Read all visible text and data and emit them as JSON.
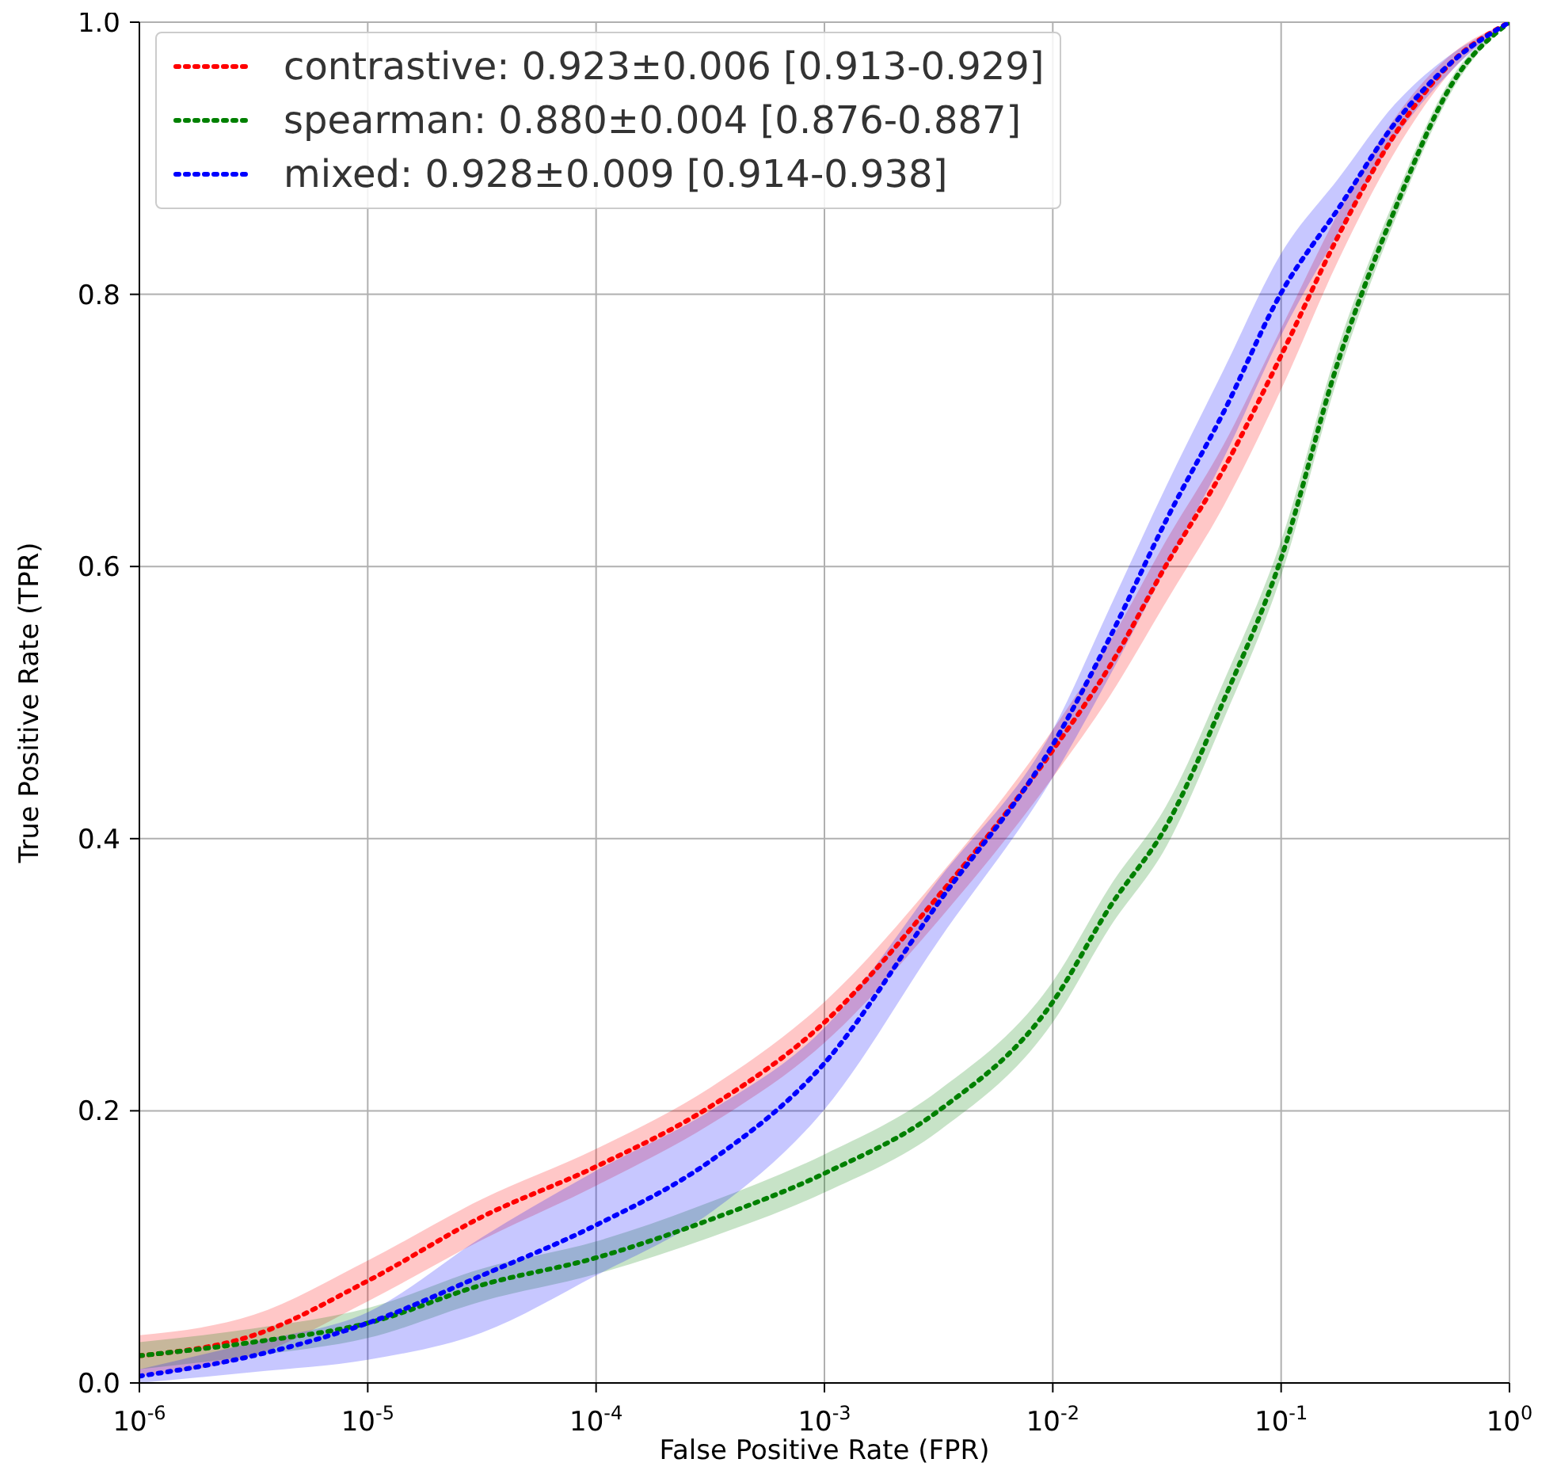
{
  "chart_data": {
    "type": "line",
    "xlabel": "False Positive Rate (FPR)",
    "ylabel": "True Positive Rate (TPR)",
    "log": "x",
    "grid": true,
    "legend": "top left",
    "marker": "none",
    "line_style": "dotted",
    "xlim": [
      1e-06,
      1
    ],
    "ylim": [
      0,
      1
    ],
    "xticks": [
      {
        "value": 1e-06,
        "label": "10$^{-6}$"
      },
      {
        "value": 1e-05,
        "label": "10$^{-5}$"
      },
      {
        "value": 0.0001,
        "label": "10$^{-4}$"
      },
      {
        "value": 0.001,
        "label": "10$^{-3}$"
      },
      {
        "value": 0.01,
        "label": "10$^{-2}$"
      },
      {
        "value": 0.1,
        "label": "10$^{-1}$"
      },
      {
        "value": 1,
        "label": "10$^{0}$"
      }
    ],
    "yticks": [
      {
        "value": 0,
        "label": "0.0"
      },
      0.2,
      0.4,
      0.6,
      0.8,
      {
        "value": 1,
        "label": "1.0"
      }
    ],
    "x": [
      1e-06,
      3.16e-06,
      1e-05,
      3.16e-05,
      0.0001,
      0.000316,
      0.001,
      0.00316,
      0.01,
      0.0178,
      0.0316,
      0.0562,
      0.1,
      0.178,
      0.316,
      0.562,
      1
    ],
    "series": [
      {
        "name": "contrastive: 0.923±0.006 [0.913-0.929]",
        "color": "#ff0000",
        "values": [
          0.02,
          0.035,
          0.075,
          0.122,
          0.159,
          0.203,
          0.265,
          0.358,
          0.465,
          0.527,
          0.602,
          0.672,
          0.755,
          0.843,
          0.918,
          0.971,
          1
        ],
        "lower": [
          0.005,
          0.02,
          0.06,
          0.105,
          0.145,
          0.19,
          0.25,
          0.34,
          0.445,
          0.505,
          0.575,
          0.645,
          0.73,
          0.825,
          0.905,
          0.965,
          1
        ],
        "upper": [
          0.035,
          0.05,
          0.09,
          0.135,
          0.172,
          0.217,
          0.28,
          0.372,
          0.48,
          0.545,
          0.62,
          0.69,
          0.775,
          0.86,
          0.93,
          0.977,
          1
        ]
      },
      {
        "name": "spearman: 0.880±0.004 [0.876-0.887]",
        "color": "#008000",
        "values": [
          0.02,
          0.03,
          0.044,
          0.072,
          0.092,
          0.12,
          0.154,
          0.2,
          0.28,
          0.35,
          0.41,
          0.502,
          0.606,
          0.751,
          0.863,
          0.955,
          1
        ],
        "lower": [
          0.01,
          0.02,
          0.033,
          0.06,
          0.08,
          0.107,
          0.14,
          0.185,
          0.265,
          0.335,
          0.395,
          0.488,
          0.593,
          0.74,
          0.855,
          0.95,
          1
        ],
        "upper": [
          0.03,
          0.04,
          0.055,
          0.084,
          0.104,
          0.133,
          0.168,
          0.215,
          0.295,
          0.365,
          0.425,
          0.516,
          0.619,
          0.762,
          0.871,
          0.96,
          1
        ]
      },
      {
        "name": "mixed: 0.928±0.009 [0.914-0.938]",
        "color": "#0000ff",
        "values": [
          0.005,
          0.02,
          0.044,
          0.079,
          0.116,
          0.163,
          0.235,
          0.353,
          0.469,
          0.548,
          0.635,
          0.714,
          0.801,
          0.863,
          0.926,
          0.971,
          1
        ],
        "lower": [
          0,
          0.008,
          0.017,
          0.037,
          0.079,
          0.125,
          0.201,
          0.325,
          0.445,
          0.52,
          0.6,
          0.68,
          0.77,
          0.845,
          0.915,
          0.965,
          1
        ],
        "upper": [
          0.01,
          0.03,
          0.052,
          0.107,
          0.156,
          0.2,
          0.261,
          0.37,
          0.48,
          0.57,
          0.66,
          0.745,
          0.83,
          0.885,
          0.94,
          0.977,
          1
        ]
      }
    ]
  }
}
